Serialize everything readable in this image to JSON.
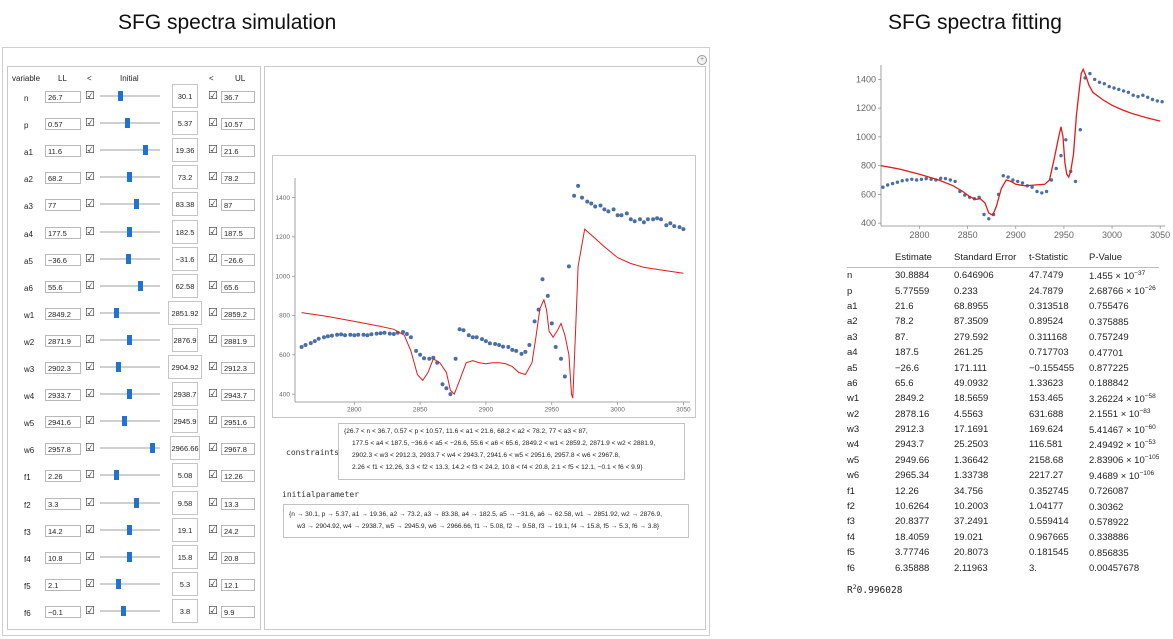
{
  "titles": {
    "simulation": "SFG spectra simulation",
    "fitting": "SFG spectra fitting"
  },
  "header": {
    "variable": "variable",
    "ll": "LL",
    "lt1": "<",
    "initial": "Initial",
    "lt2": "<",
    "ul": "UL"
  },
  "params": [
    {
      "name": "n",
      "ll": "26.7",
      "init": "30.1",
      "ul": "36.7",
      "pos": 0.34
    },
    {
      "name": "p",
      "ll": "0.57",
      "init": "5.37",
      "ul": "10.57",
      "pos": 0.45
    },
    {
      "name": "a1",
      "ll": "11.6",
      "init": "19.36",
      "ul": "21.6",
      "pos": 0.75
    },
    {
      "name": "a2",
      "ll": "68.2",
      "init": "73.2",
      "ul": "78.2",
      "pos": 0.48
    },
    {
      "name": "a3",
      "ll": "77",
      "init": "83.38",
      "ul": "87",
      "pos": 0.6
    },
    {
      "name": "a4",
      "ll": "177.5",
      "init": "182.5",
      "ul": "187.5",
      "pos": 0.48
    },
    {
      "name": "a5",
      "ll": "−36.6",
      "init": "−31.6",
      "ul": "−26.6",
      "pos": 0.47
    },
    {
      "name": "a6",
      "ll": "55.6",
      "init": "62.58",
      "ul": "65.6",
      "pos": 0.67
    },
    {
      "name": "w1",
      "ll": "2849.2",
      "init": "2851.92",
      "ul": "2859.2",
      "pos": 0.27
    },
    {
      "name": "w2",
      "ll": "2871.9",
      "init": "2876.9",
      "ul": "2881.9",
      "pos": 0.48
    },
    {
      "name": "w3",
      "ll": "2902.3",
      "init": "2904.92",
      "ul": "2912.3",
      "pos": 0.3
    },
    {
      "name": "w4",
      "ll": "2933.7",
      "init": "2938.7",
      "ul": "2943.7",
      "pos": 0.48
    },
    {
      "name": "w5",
      "ll": "2941.6",
      "init": "2945.9",
      "ul": "2951.6",
      "pos": 0.4
    },
    {
      "name": "w6",
      "ll": "2957.8",
      "init": "2966.66",
      "ul": "2967.8",
      "pos": 0.86
    },
    {
      "name": "f1",
      "ll": "2.26",
      "init": "5.08",
      "ul": "12.26",
      "pos": 0.27
    },
    {
      "name": "f2",
      "ll": "3.3",
      "init": "9.58",
      "ul": "13.3",
      "pos": 0.6
    },
    {
      "name": "f3",
      "ll": "14.2",
      "init": "19.1",
      "ul": "24.2",
      "pos": 0.48
    },
    {
      "name": "f4",
      "ll": "10.8",
      "init": "15.8",
      "ul": "20.8",
      "pos": 0.48
    },
    {
      "name": "f5",
      "ll": "2.1",
      "init": "5.3",
      "ul": "12.1",
      "pos": 0.3
    },
    {
      "name": "f6",
      "ll": "−0.1",
      "init": "3.8",
      "ul": "9.9",
      "pos": 0.38
    }
  ],
  "constraints": {
    "label": "constraints",
    "lines": [
      "{26.7 < n < 36.7, 0.57 < p < 10.57, 11.6 < a1 < 21.6, 68.2 < a2 < 78.2, 77 < a3 < 87,",
      "177.5 < a4 < 187.5, −36.6 < a5 < −26.6, 55.6 < a6 < 65.6, 2849.2 < w1 < 2859.2, 2871.9 < w2 < 2881.9,",
      "2902.3 < w3 < 2912.3, 2933.7 < w4 < 2943.7, 2941.6 < w5 < 2951.6, 2957.8 < w6 < 2967.8,",
      "2.26 < f1 < 12.26, 3.3 < f2 < 13.3, 14.2 < f3 < 24.2, 10.8 < f4 < 20.8, 2.1 < f5 < 12.1, −0.1 < f6 < 9.9}"
    ]
  },
  "initialparameter": {
    "label": "initialparameter",
    "lines": [
      "{n → 30.1, p → 5.37, a1 → 19.36, a2 → 73.2, a3 → 83.38, a4 → 182.5, a5 → −31.6, a6 → 62.58, w1 → 2851.92, w2 → 2876.9,",
      "w3 → 2904.92, w4 → 2938.7, w5 → 2945.9, w6 → 2966.66, f1 → 5.08, f2 → 9.58, f3 → 19.1, f4 → 15.8, f5 → 5.3, f6 → 3.8}"
    ]
  },
  "chart_data": [
    {
      "type": "scatter",
      "title": "",
      "xlabel": "",
      "ylabel": "",
      "xlim": [
        2755,
        3055
      ],
      "ylim": [
        360,
        1500
      ],
      "xticks": [
        2800,
        2850,
        2900,
        2950,
        3000,
        3050
      ],
      "yticks": [
        400,
        600,
        800,
        1000,
        1200,
        1400
      ],
      "series": [
        {
          "kind": "points",
          "color": "#4a6fa5",
          "x": [
            2760,
            2763,
            2767,
            2770,
            2773,
            2777,
            2780,
            2783,
            2787,
            2790,
            2793,
            2797,
            2800,
            2803,
            2807,
            2810,
            2813,
            2817,
            2820,
            2823,
            2827,
            2830,
            2833,
            2837,
            2840,
            2843,
            2847,
            2850,
            2853,
            2857,
            2860,
            2863,
            2867,
            2870,
            2873,
            2877,
            2880,
            2883,
            2887,
            2890,
            2893,
            2897,
            2900,
            2903,
            2907,
            2910,
            2913,
            2917,
            2920,
            2923,
            2927,
            2930,
            2933,
            2937,
            2940,
            2943,
            2947,
            2950,
            2953,
            2957,
            2960,
            2963,
            2967,
            2970,
            2973,
            2977,
            2980,
            2983,
            2987,
            2990,
            2993,
            2997,
            3000,
            3003,
            3007,
            3010,
            3013,
            3017,
            3020,
            3023,
            3027,
            3030,
            3033,
            3037,
            3040,
            3043,
            3047,
            3050
          ],
          "y": [
            640,
            650,
            660,
            670,
            682,
            690,
            695,
            698,
            702,
            704,
            700,
            702,
            700,
            702,
            702,
            700,
            705,
            708,
            710,
            712,
            708,
            706,
            712,
            716,
            706,
            690,
            620,
            600,
            583,
            580,
            585,
            560,
            450,
            430,
            400,
            580,
            730,
            725,
            700,
            690,
            690,
            680,
            670,
            658,
            655,
            650,
            642,
            640,
            625,
            620,
            605,
            615,
            650,
            770,
            830,
            985,
            900,
            760,
            640,
            580,
            490,
            1050,
            1410,
            1460,
            1400,
            1380,
            1370,
            1355,
            1360,
            1340,
            1330,
            1340,
            1310,
            1310,
            1320,
            1290,
            1280,
            1290,
            1275,
            1290,
            1290,
            1295,
            1290,
            1260,
            1270,
            1255,
            1250,
            1240
          ]
        },
        {
          "kind": "line",
          "color": "#e01b1b",
          "x": [
            2760,
            2780,
            2800,
            2820,
            2830,
            2838,
            2843,
            2848,
            2852,
            2856,
            2860,
            2865,
            2870,
            2873,
            2876,
            2880,
            2885,
            2890,
            2895,
            2900,
            2905,
            2910,
            2915,
            2920,
            2925,
            2930,
            2935,
            2938,
            2941,
            2944,
            2946,
            2948,
            2951,
            2954,
            2957,
            2960,
            2963,
            2965,
            2966,
            2968,
            2970,
            2975,
            2980,
            2990,
            3000,
            3010,
            3020,
            3035,
            3050
          ],
          "y": [
            815,
            795,
            770,
            745,
            730,
            700,
            620,
            500,
            470,
            510,
            580,
            560,
            510,
            420,
            400,
            470,
            560,
            570,
            560,
            555,
            560,
            560,
            555,
            540,
            510,
            500,
            560,
            690,
            835,
            880,
            830,
            720,
            690,
            720,
            760,
            700,
            600,
            400,
            380,
            700,
            1050,
            1240,
            1210,
            1150,
            1095,
            1065,
            1045,
            1030,
            1015
          ]
        }
      ]
    },
    {
      "type": "scatter",
      "title": "",
      "xlabel": "",
      "ylabel": "",
      "xlim": [
        2760,
        3055
      ],
      "ylim": [
        380,
        1500
      ],
      "xticks": [
        2800,
        2850,
        2900,
        2950,
        3000,
        3050
      ],
      "yticks": [
        400,
        600,
        800,
        1000,
        1200,
        1400
      ],
      "series": [
        {
          "kind": "points",
          "color": "#4a6fa5",
          "x": [
            2762,
            2767,
            2772,
            2777,
            2782,
            2787,
            2792,
            2797,
            2802,
            2807,
            2812,
            2817,
            2822,
            2827,
            2832,
            2837,
            2842,
            2847,
            2852,
            2857,
            2862,
            2867,
            2872,
            2877,
            2882,
            2887,
            2892,
            2897,
            2902,
            2907,
            2912,
            2917,
            2922,
            2927,
            2932,
            2937,
            2942,
            2947,
            2952,
            2957,
            2962,
            2967,
            2972,
            2977,
            2982,
            2987,
            2992,
            2997,
            3002,
            3007,
            3012,
            3017,
            3022,
            3027,
            3032,
            3037,
            3042,
            3047,
            3052
          ],
          "y": [
            650,
            665,
            675,
            685,
            695,
            700,
            705,
            700,
            705,
            710,
            705,
            700,
            712,
            710,
            700,
            690,
            620,
            595,
            580,
            570,
            580,
            460,
            430,
            460,
            600,
            730,
            720,
            700,
            690,
            680,
            660,
            650,
            620,
            610,
            620,
            700,
            780,
            870,
            980,
            760,
            690,
            1050,
            1410,
            1440,
            1400,
            1380,
            1370,
            1350,
            1340,
            1330,
            1320,
            1310,
            1290,
            1280,
            1290,
            1275,
            1260,
            1250,
            1245
          ]
        },
        {
          "kind": "line",
          "color": "#e01b1b",
          "x": [
            2760,
            2780,
            2800,
            2820,
            2835,
            2845,
            2852,
            2858,
            2863,
            2868,
            2872,
            2876,
            2880,
            2885,
            2890,
            2895,
            2900,
            2910,
            2920,
            2930,
            2935,
            2940,
            2944,
            2947,
            2949,
            2951,
            2953,
            2955,
            2957,
            2960,
            2963,
            2966,
            2968,
            2970,
            2973,
            2976,
            2980,
            2990,
            3000,
            3010,
            3020,
            3035,
            3050
          ],
          "y": [
            800,
            775,
            740,
            700,
            660,
            620,
            585,
            565,
            570,
            540,
            470,
            455,
            520,
            640,
            700,
            690,
            670,
            660,
            665,
            670,
            700,
            850,
            980,
            1070,
            1000,
            820,
            740,
            720,
            760,
            880,
            1150,
            1330,
            1440,
            1470,
            1420,
            1360,
            1310,
            1260,
            1220,
            1190,
            1165,
            1135,
            1110
          ]
        }
      ]
    }
  ],
  "fit_table": {
    "headers": [
      "",
      "Estimate",
      "Standard Error",
      "t-Statistic",
      "P-Value"
    ],
    "rows": [
      {
        "name": "n",
        "est": "30.8884",
        "se": "0.646906",
        "t": "47.7479",
        "pm": "1.455 × 10",
        "pe": "−37"
      },
      {
        "name": "p",
        "est": "5.77559",
        "se": "0.233",
        "t": "24.7879",
        "pm": "2.68766 × 10",
        "pe": "−26"
      },
      {
        "name": "a1",
        "est": "21.6",
        "se": "68.8955",
        "t": "0.313518",
        "pm": "0.755476",
        "pe": ""
      },
      {
        "name": "a2",
        "est": "78.2",
        "se": "87.3509",
        "t": "0.89524",
        "pm": "0.375885",
        "pe": ""
      },
      {
        "name": "a3",
        "est": "87.",
        "se": "279.592",
        "t": "0.311168",
        "pm": "0.757249",
        "pe": ""
      },
      {
        "name": "a4",
        "est": "187.5",
        "se": "261.25",
        "t": "0.717703",
        "pm": "0.47701",
        "pe": ""
      },
      {
        "name": "a5",
        "est": "−26.6",
        "se": "171.111",
        "t": "−0.155455",
        "pm": "0.877225",
        "pe": ""
      },
      {
        "name": "a6",
        "est": "65.6",
        "se": "49.0932",
        "t": "1.33623",
        "pm": "0.188842",
        "pe": ""
      },
      {
        "name": "w1",
        "est": "2849.2",
        "se": "18.5659",
        "t": "153.465",
        "pm": "3.26224 × 10",
        "pe": "−58"
      },
      {
        "name": "w2",
        "est": "2878.16",
        "se": "4.5563",
        "t": "631.688",
        "pm": "2.1551 × 10",
        "pe": "−83"
      },
      {
        "name": "w3",
        "est": "2912.3",
        "se": "17.1691",
        "t": "169.624",
        "pm": "5.41467 × 10",
        "pe": "−60"
      },
      {
        "name": "w4",
        "est": "2943.7",
        "se": "25.2503",
        "t": "116.581",
        "pm": "2.49492 × 10",
        "pe": "−53"
      },
      {
        "name": "w5",
        "est": "2949.66",
        "se": "1.36642",
        "t": "2158.68",
        "pm": "2.83906 × 10",
        "pe": "−105"
      },
      {
        "name": "w6",
        "est": "2965.34",
        "se": "1.33738",
        "t": "2217.27",
        "pm": "9.4689 × 10",
        "pe": "−106"
      },
      {
        "name": "f1",
        "est": "12.26",
        "se": "34.756",
        "t": "0.352745",
        "pm": "0.726087",
        "pe": ""
      },
      {
        "name": "f2",
        "est": "10.6264",
        "se": "10.2003",
        "t": "1.04177",
        "pm": "0.30362",
        "pe": ""
      },
      {
        "name": "f3",
        "est": "20.8377",
        "se": "37.2491",
        "t": "0.559414",
        "pm": "0.578922",
        "pe": ""
      },
      {
        "name": "f4",
        "est": "18.4059",
        "se": "19.021",
        "t": "0.967665",
        "pm": "0.338886",
        "pe": ""
      },
      {
        "name": "f5",
        "est": "3.77746",
        "se": "20.8073",
        "t": "0.181545",
        "pm": "0.856835",
        "pe": ""
      },
      {
        "name": "f6",
        "est": "6.35888",
        "se": "2.11963",
        "t": "3.",
        "pm": "0.00457678",
        "pe": ""
      }
    ],
    "rsq_label": "R",
    "rsq_exp": "2",
    "rsq_value": "0.996028"
  },
  "colors": {
    "thumb": "#1e74d0",
    "fit_line": "#e01b1b",
    "points": "#4a6fa5"
  }
}
